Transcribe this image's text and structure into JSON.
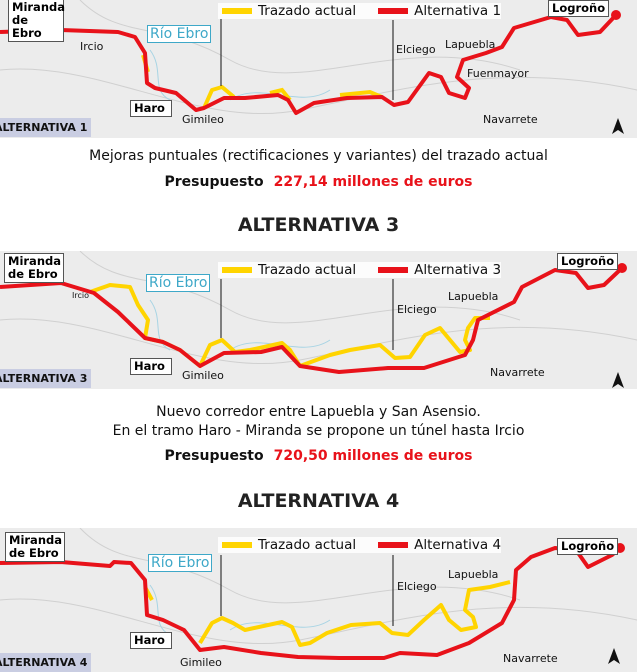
{
  "colors": {
    "current_route": "#ffd400",
    "alternative_route": "#e8121a",
    "river": "#3ea8c8"
  },
  "panels": [
    {
      "label": "ALTERNATIVA 1",
      "legend_current": "Trazado actual",
      "legend_alt": "Alternativa 1",
      "places": {
        "miranda": "Miranda de Ebro",
        "ircio": "Ircio",
        "river": "Río Ebro",
        "haro": "Haro",
        "gimileo": "Gimileo",
        "elciego": "Elciego",
        "lapuebla": "Lapuebla",
        "fuenmayor": "Fuenmayor",
        "navarrete": "Navarrete",
        "logrono": "Logroño"
      },
      "description": [
        "Mejoras puntuales (rectificaciones y variantes) del trazado actual"
      ],
      "budget_label": "Presupuesto",
      "budget_value": "227,14 millones de euros"
    },
    {
      "title": "ALTERNATIVA 3",
      "label": "ALTERNATIVA 3",
      "legend_current": "Trazado actual",
      "legend_alt": "Alternativa 3",
      "places": {
        "miranda": "Miranda de Ebro",
        "ircio": "Ircio",
        "river": "Río Ebro",
        "haro": "Haro",
        "gimileo": "Gimileo",
        "elciego": "Elciego",
        "lapuebla": "Lapuebla",
        "navarrete": "Navarrete",
        "logrono": "Logroño"
      },
      "description": [
        "Nuevo corredor entre Lapuebla y San Asensio.",
        "En el tramo Haro - Miranda se propone un túnel hasta Ircio"
      ],
      "budget_label": "Presupuesto",
      "budget_value": "720,50 millones de euros"
    },
    {
      "title": "ALTERNATIVA 4",
      "label": "ALTERNATIVA 4",
      "legend_current": "Trazado actual",
      "legend_alt": "Alternativa 4",
      "places": {
        "miranda": "Miranda de Ebro",
        "river": "Río Ebro",
        "haro": "Haro",
        "gimileo": "Gimileo",
        "elciego": "Elciego",
        "lapuebla": "Lapuebla",
        "navarrete": "Navarrete",
        "logrono": "Logroño"
      }
    }
  ],
  "compass": "N"
}
